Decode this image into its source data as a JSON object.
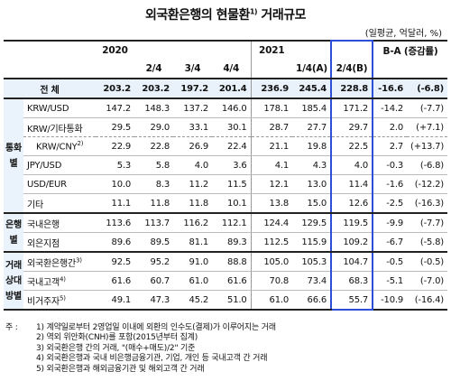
{
  "title": "외국환은행의 현물환",
  "title_sup": "1)",
  "title_tail": " 거래규모",
  "unit": "(일평균, 억달러, %)",
  "header": {
    "y2020": "2020",
    "y2021": "2021",
    "q2": "2/4",
    "q3": "3/4",
    "q4": "4/4",
    "q1a": "1/4(A)",
    "q2b": "2/4(B)",
    "diff": "B-A (증감률)"
  },
  "total": {
    "label": "전 체",
    "values": [
      "203.2",
      "203.2",
      "197.2",
      "201.4",
      "236.9",
      "245.4",
      "228.8",
      "-16.6",
      "(-6.8)"
    ]
  },
  "groups": {
    "currency": "통화별",
    "bank": "은행별",
    "party": "거래상대방별"
  },
  "rows": [
    {
      "label": "KRW/USD",
      "values": [
        "147.2",
        "148.3",
        "137.2",
        "146.0",
        "178.1",
        "185.4",
        "171.2",
        "-14.2",
        "(-7.7)"
      ]
    },
    {
      "label": "KRW/기타통화",
      "values": [
        "29.5",
        "29.0",
        "33.1",
        "30.1",
        "28.7",
        "27.7",
        "29.7",
        "2.0",
        "(+7.1)"
      ]
    },
    {
      "label": "KRW/CNY",
      "sup": "2)",
      "values": [
        "22.9",
        "22.8",
        "26.9",
        "22.4",
        "21.1",
        "19.8",
        "22.5",
        "2.7",
        "(+13.7)"
      ]
    },
    {
      "label": "JPY/USD",
      "values": [
        "5.3",
        "5.8",
        "4.0",
        "3.6",
        "4.1",
        "4.3",
        "4.0",
        "-0.3",
        "(-6.8)"
      ]
    },
    {
      "label": "USD/EUR",
      "values": [
        "10.0",
        "8.3",
        "11.2",
        "11.5",
        "12.1",
        "13.0",
        "11.4",
        "-1.6",
        "(-12.2)"
      ]
    },
    {
      "label": "기타",
      "values": [
        "11.1",
        "11.8",
        "11.8",
        "10.1",
        "13.8",
        "15.0",
        "12.6",
        "-2.5",
        "(-16.3)"
      ]
    },
    {
      "label": "국내은행",
      "values": [
        "113.6",
        "113.7",
        "116.2",
        "112.1",
        "124.4",
        "129.5",
        "119.5",
        "-9.9",
        "(-7.7)"
      ]
    },
    {
      "label": "외은지점",
      "values": [
        "89.6",
        "89.5",
        "81.1",
        "89.3",
        "112.5",
        "115.9",
        "109.2",
        "-6.7",
        "(-5.8)"
      ]
    },
    {
      "label": "외국환은행간",
      "sup": "3)",
      "values": [
        "92.5",
        "95.2",
        "91.0",
        "88.8",
        "105.0",
        "105.3",
        "104.7",
        "-0.5",
        "(-0.5)"
      ]
    },
    {
      "label": "국내고객",
      "sup": "4)",
      "values": [
        "61.6",
        "60.7",
        "61.0",
        "61.6",
        "70.8",
        "73.4",
        "68.3",
        "-5.1",
        "(-7.0)"
      ]
    },
    {
      "label": "비거주자",
      "sup": "5)",
      "values": [
        "49.1",
        "47.3",
        "45.2",
        "51.0",
        "61.0",
        "66.6",
        "55.7",
        "-10.9",
        "(-16.4)"
      ]
    }
  ],
  "notes": {
    "lead": "주 :",
    "items": [
      "1) 계약일로부터 2영업일 이내에 외환의 인수도(결제)가 이루어지는 거래",
      "2) 역외 위안화(CNH)를 포함(2015년부터 집계)",
      "3) 외국환은행 간의 거래, \"(매수+매도)/2\" 기준",
      "4) 외국환은행과 국내 비은행금융기관, 기업, 개인 등 국내고객 간 거래",
      "5) 외국환은행과 해외금융기관 및 해외고객 간 거래"
    ]
  }
}
